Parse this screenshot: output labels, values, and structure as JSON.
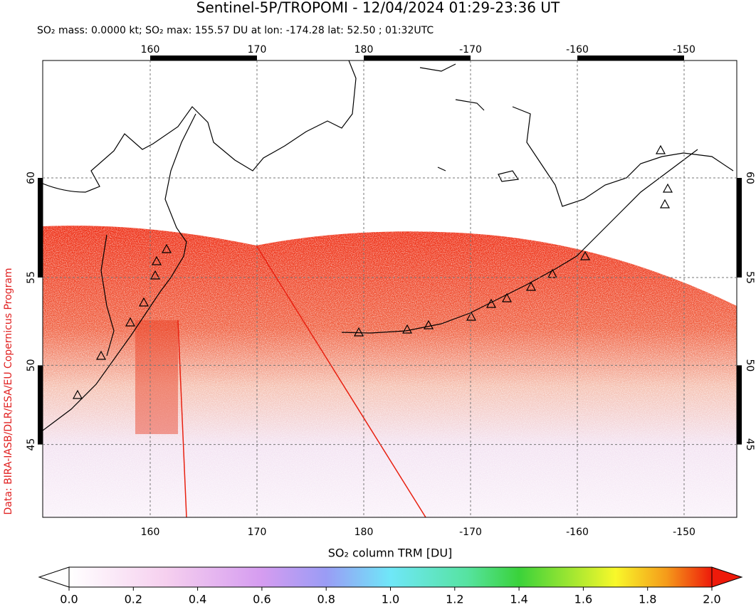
{
  "title": "Sentinel-5P/TROPOMI - 12/04/2024 01:29-23:36 UT",
  "subtitle": "SO₂ mass: 0.0000 kt; SO₂ max: 155.57 DU at lon: -174.28 lat: 52.50 ; 01:32UTC",
  "credit": "Data: BIRA-IASB/DLR/ESA/EU Copernicus Program",
  "map": {
    "lon_ticks": [
      160,
      170,
      180,
      -170,
      -160,
      -150
    ],
    "lat_ticks": [
      60,
      55,
      50,
      45
    ]
  },
  "colorbar": {
    "label": "SO₂ column TRM [DU]",
    "range": [
      0,
      2
    ],
    "ticks": [
      {
        "value": 0,
        "label": "0.0"
      },
      {
        "value": 0.2,
        "label": "0.2"
      },
      {
        "value": 0.4,
        "label": "0.4"
      },
      {
        "value": 0.6,
        "label": "0.6"
      },
      {
        "value": 0.8,
        "label": "0.8"
      },
      {
        "value": 1,
        "label": "1.0"
      },
      {
        "value": 1.2,
        "label": "1.2"
      },
      {
        "value": 1.4,
        "label": "1.4"
      },
      {
        "value": 1.6,
        "label": "1.6"
      },
      {
        "value": 1.8,
        "label": "1.8"
      },
      {
        "value": 2,
        "label": "2.0"
      }
    ]
  }
}
